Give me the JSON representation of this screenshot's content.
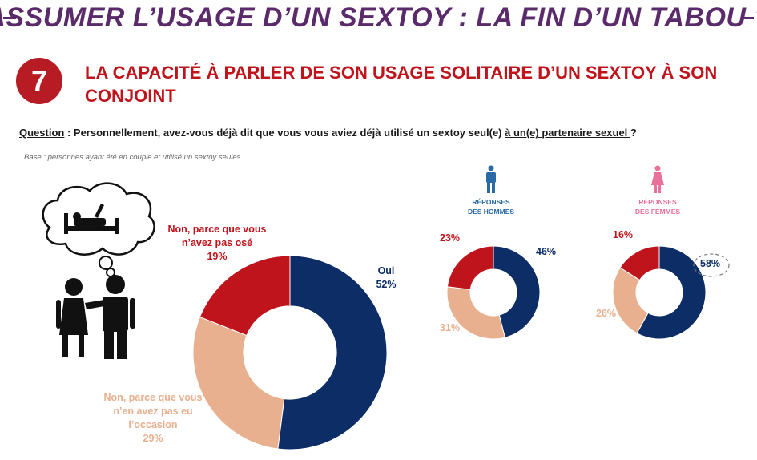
{
  "header": {
    "main_title": "ASSUMER L’USAGE D’UN SEXTOY : LA FIN D’UN TABOU ?",
    "section_number": "7",
    "section_title": "LA CAPACITÉ À PARLER DE SON USAGE SOLITAIRE D’UN SEXTOY À SON CONJOINT"
  },
  "question": {
    "prefix": "Question",
    "text": " : Personnellement, avez-vous déjà dit que vous vous aviez déjà utilisé un sextoy seul(e) ",
    "underlined_end": "à un(e) partenaire sexuel ",
    "end": "?"
  },
  "base": "Base : personnes ayant été en couple et utilisé un sextoy seules",
  "colors": {
    "oui": "#0d2d66",
    "non_pas_ose": "#c0141c",
    "non_pas_occasion": "#e8b08e",
    "men_icon": "#2a6aa6",
    "women_icon": "#e8709a"
  },
  "chart_data": [
    {
      "type": "pie",
      "donut": true,
      "name": "Ensemble",
      "slices": [
        {
          "label": "Oui",
          "value": 52,
          "value_label": "52%"
        },
        {
          "label": "Non, parce que vous n’en avez pas eu l’occasion",
          "value": 29,
          "value_label": "29%"
        },
        {
          "label": "Non, parce que vous n’avez pas osé",
          "value": 19,
          "value_label": "19%"
        }
      ]
    },
    {
      "type": "pie",
      "donut": true,
      "name": "RÉPONSES DES HOMMES",
      "slices": [
        {
          "label": "Oui",
          "value": 46,
          "value_label": "46%"
        },
        {
          "label": "Non, parce que vous n’en avez pas eu l’occasion",
          "value": 31,
          "value_label": "31%"
        },
        {
          "label": "Non, parce que vous n’avez pas osé",
          "value": 23,
          "value_label": "23%"
        }
      ]
    },
    {
      "type": "pie",
      "donut": true,
      "name": "RÉPONSES DES FEMMES",
      "slices": [
        {
          "label": "Oui",
          "value": 58,
          "value_label": "58%"
        },
        {
          "label": "Non, parce que vous n’en avez pas eu l’occasion",
          "value": 26,
          "value_label": "26%"
        },
        {
          "label": "Non, parce que vous n’avez pas osé",
          "value": 16,
          "value_label": "16%"
        }
      ]
    }
  ],
  "labels": {
    "oui": "Oui",
    "non_ose_l1": "Non, parce que vous",
    "non_ose_l2": "n’avez pas osé",
    "non_occ_l1": "Non, parce que vous",
    "non_occ_l2": "n’en avez pas eu",
    "non_occ_l3": "l’occasion"
  },
  "men": {
    "header_l1": "RÉPONSES",
    "header_l2": "DES HOMMES",
    "icon": "man-icon"
  },
  "women": {
    "header_l1": "RÉPONSES",
    "header_l2": "DES FEMMES",
    "icon": "woman-icon"
  },
  "illustration": {
    "icon": "couple-icon",
    "bubble_icon": "thought-bubble-bed-icon"
  }
}
